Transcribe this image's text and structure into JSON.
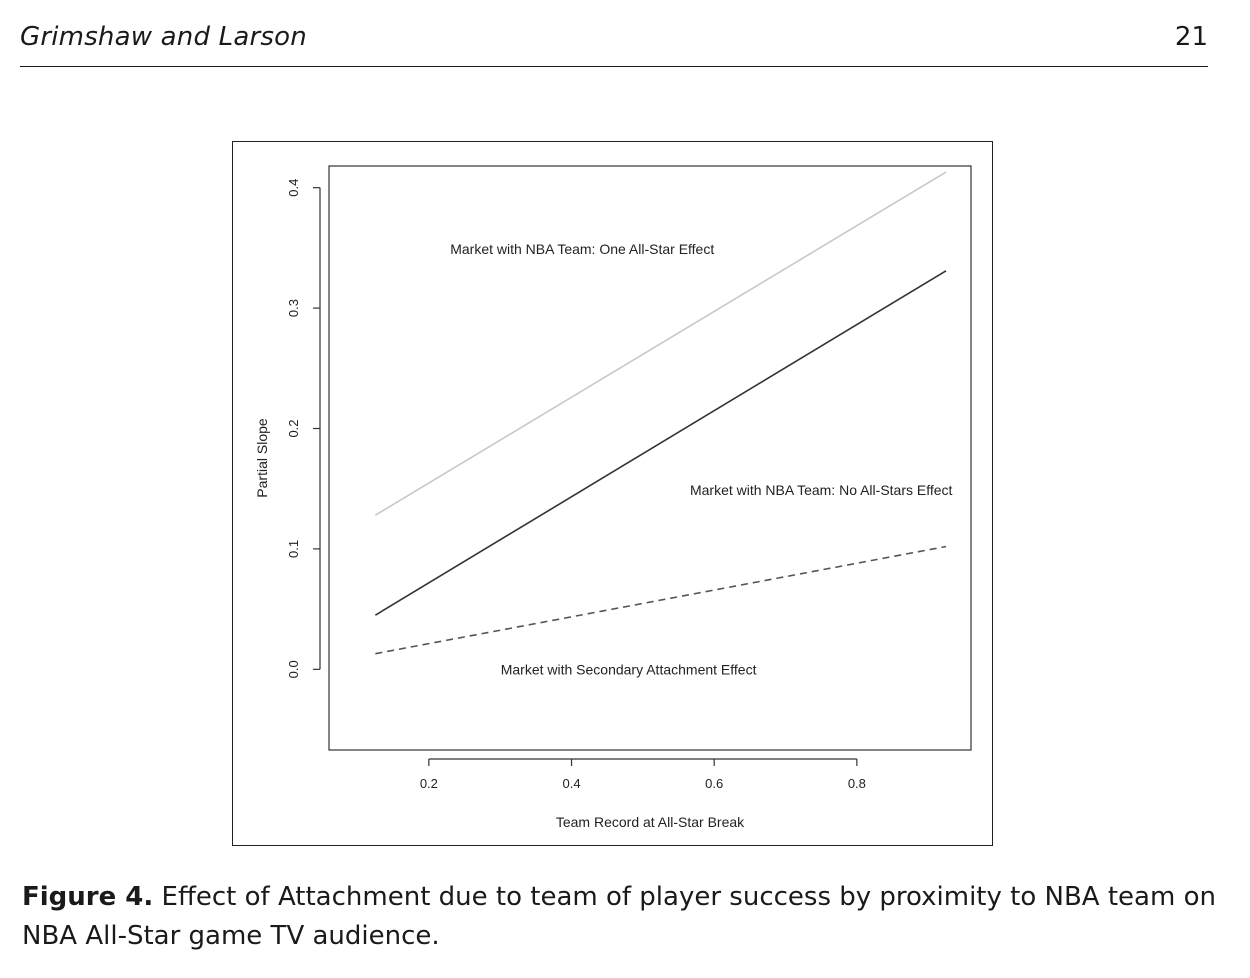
{
  "header": {
    "authors": "Grimshaw and Larson",
    "page_number": "21"
  },
  "figure": {
    "caption_label": "Figure 4.",
    "caption_text": " Effect of Attachment due to team of player success by proximity to NBA team on NBA All-Star game TV audience."
  },
  "chart_data": {
    "type": "line",
    "title": "",
    "xlabel": "Team Record at All-Star Break",
    "ylabel": "Partial Slope",
    "xlim": [
      0.06,
      0.96
    ],
    "ylim": [
      -0.067,
      0.418
    ],
    "xticks": [
      0.2,
      0.4,
      0.6,
      0.8
    ],
    "xtick_labels": [
      "0.2",
      "0.4",
      "0.6",
      "0.8"
    ],
    "yticks": [
      0.0,
      0.1,
      0.2,
      0.3,
      0.4
    ],
    "ytick_labels": [
      "0.0",
      "0.1",
      "0.2",
      "0.3",
      "0.4"
    ],
    "grid": false,
    "series": [
      {
        "name": "Market with NBA Team: One All-Star Effect",
        "x": [
          0.125,
          0.925
        ],
        "y": [
          0.128,
          0.413
        ],
        "color": "#c8c8c8",
        "dash": "solid",
        "label_x": 0.415,
        "label_y": 0.349
      },
      {
        "name": "Market with NBA Team: No All-Stars Effect",
        "x": [
          0.125,
          0.925
        ],
        "y": [
          0.045,
          0.331
        ],
        "color": "#333333",
        "dash": "solid",
        "label_x": 0.75,
        "label_y": 0.149
      },
      {
        "name": "Market with Secondary Attachment Effect",
        "x": [
          0.125,
          0.925
        ],
        "y": [
          0.013,
          0.102
        ],
        "color": "#555555",
        "dash": "dashed",
        "label_x": 0.48,
        "label_y": 0.0
      }
    ]
  }
}
